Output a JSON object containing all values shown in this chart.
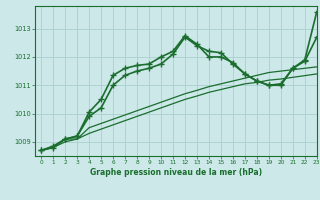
{
  "title": "Graphe pression niveau de la mer (hPa)",
  "background_color": "#cce8e8",
  "grid_color": "#aad0d0",
  "line_color": "#1a6e2e",
  "xlim": [
    -0.5,
    23
  ],
  "ylim": [
    1008.5,
    1013.8
  ],
  "yticks": [
    1009,
    1010,
    1011,
    1012,
    1013
  ],
  "xticks": [
    0,
    1,
    2,
    3,
    4,
    5,
    6,
    7,
    8,
    9,
    10,
    11,
    12,
    13,
    14,
    15,
    16,
    17,
    18,
    19,
    20,
    21,
    22,
    23
  ],
  "series": [
    {
      "y": [
        1008.7,
        1008.8,
        1009.1,
        1009.2,
        1010.05,
        1010.5,
        1011.35,
        1011.6,
        1011.7,
        1011.75,
        1012.0,
        1012.2,
        1012.75,
        1012.45,
        1012.0,
        1012.0,
        1011.8,
        1011.4,
        1011.15,
        1011.0,
        1011.0,
        1011.6,
        1011.9,
        1013.6
      ],
      "marker": "+",
      "linewidth": 1.2,
      "markersize": 5,
      "linestyle": "-"
    },
    {
      "y": [
        1008.7,
        1008.85,
        1009.1,
        1009.2,
        1009.9,
        1010.2,
        1011.0,
        1011.35,
        1011.5,
        1011.6,
        1011.75,
        1012.1,
        1012.7,
        1012.4,
        1012.2,
        1012.15,
        1011.75,
        1011.4,
        1011.15,
        1011.0,
        1011.05,
        1011.6,
        1011.85,
        1012.7
      ],
      "marker": "+",
      "linewidth": 1.2,
      "markersize": 5,
      "linestyle": "-"
    },
    {
      "y": [
        1008.7,
        1008.8,
        1009.1,
        1009.1,
        1009.5,
        1009.65,
        1009.8,
        1009.95,
        1010.1,
        1010.25,
        1010.4,
        1010.55,
        1010.7,
        1010.82,
        1010.95,
        1011.05,
        1011.15,
        1011.25,
        1011.35,
        1011.45,
        1011.5,
        1011.55,
        1011.6,
        1011.65
      ],
      "marker": null,
      "linewidth": 0.9,
      "markersize": 0,
      "linestyle": "-"
    },
    {
      "y": [
        1008.7,
        1008.8,
        1009.0,
        1009.1,
        1009.3,
        1009.45,
        1009.6,
        1009.75,
        1009.9,
        1010.05,
        1010.2,
        1010.35,
        1010.5,
        1010.62,
        1010.75,
        1010.85,
        1010.95,
        1011.05,
        1011.1,
        1011.18,
        1011.22,
        1011.28,
        1011.34,
        1011.4
      ],
      "marker": null,
      "linewidth": 0.9,
      "markersize": 0,
      "linestyle": "-"
    }
  ]
}
